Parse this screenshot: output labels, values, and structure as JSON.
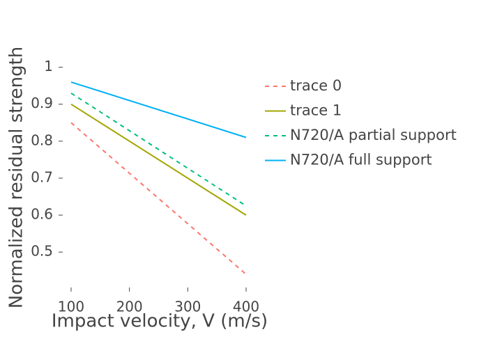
{
  "chart_data": {
    "type": "line",
    "title": "",
    "xlabel": "Impact velocity, V (m/s)",
    "ylabel": "Normalized residual strength",
    "xlim": [
      100,
      400
    ],
    "ylim": [
      0.41,
      1.02
    ],
    "xticks": [
      100,
      200,
      300,
      400
    ],
    "yticks": [
      0.5,
      0.6,
      0.7,
      0.8,
      0.9,
      1
    ],
    "grid": false,
    "legend_position": "right",
    "series": [
      {
        "name": "trace 0",
        "x": [
          100,
          400
        ],
        "y": [
          0.85,
          0.44
        ],
        "color": "#F8766D",
        "dash": "dashed"
      },
      {
        "name": "trace 1",
        "x": [
          100,
          400
        ],
        "y": [
          0.9,
          0.6
        ],
        "color": "#A3A500",
        "dash": "solid"
      },
      {
        "name": "N720/A partial support",
        "x": [
          100,
          400
        ],
        "y": [
          0.93,
          0.625
        ],
        "color": "#00BF7D",
        "dash": "dashed"
      },
      {
        "name": "N720/A full support",
        "x": [
          100,
          400
        ],
        "y": [
          0.96,
          0.81
        ],
        "color": "#00B0F6",
        "dash": "solid"
      }
    ]
  }
}
